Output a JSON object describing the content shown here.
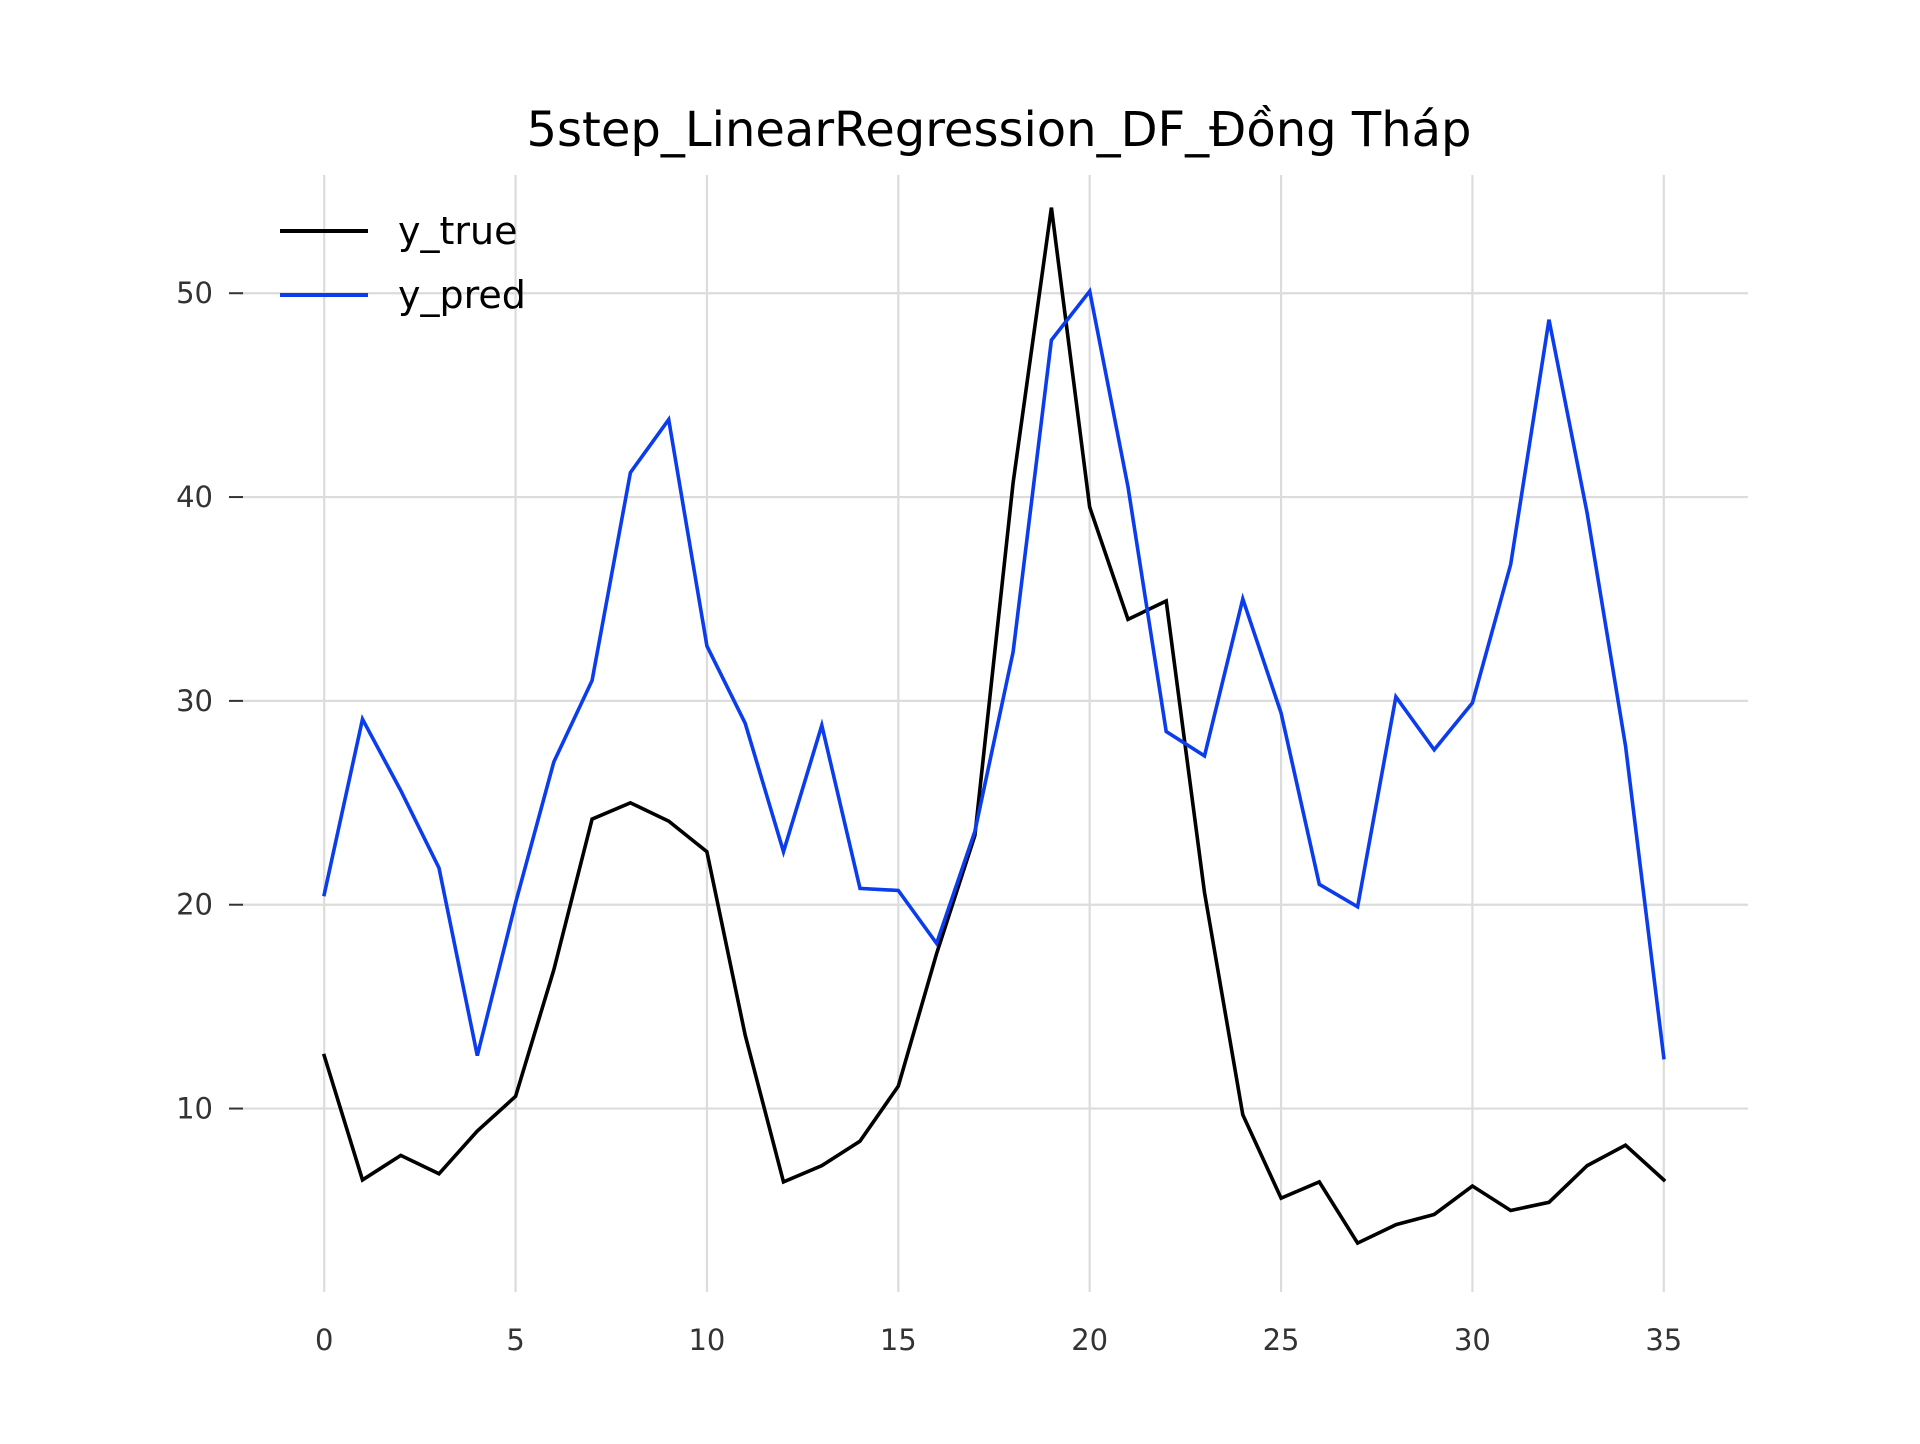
{
  "chart_data": {
    "type": "line",
    "title": "5step_LinearRegression_DF_Đồng Tháp",
    "xlabel": "",
    "ylabel": "",
    "xlim": [
      -2.2,
      37.2
    ],
    "ylim": [
      1.0,
      55.8
    ],
    "xticks": [
      0,
      5,
      10,
      15,
      20,
      25,
      30,
      35
    ],
    "yticks": [
      10,
      20,
      30,
      40,
      50
    ],
    "grid": true,
    "legend_position": "upper-left",
    "x": [
      0,
      1,
      2,
      3,
      4,
      5,
      6,
      7,
      8,
      9,
      10,
      11,
      12,
      13,
      14,
      15,
      16,
      17,
      18,
      19,
      20,
      21,
      22,
      23,
      24,
      25,
      26,
      27,
      28,
      29,
      30,
      31,
      32,
      33,
      34,
      35
    ],
    "series": [
      {
        "name": "y_true",
        "color": "#000000",
        "values": [
          12.6,
          6.5,
          7.7,
          6.8,
          8.9,
          10.6,
          16.8,
          24.2,
          25.0,
          24.1,
          22.6,
          13.6,
          6.4,
          7.2,
          8.4,
          11.1,
          17.6,
          23.4,
          40.7,
          54.2,
          39.5,
          34.0,
          34.9,
          20.6,
          9.7,
          5.6,
          6.4,
          3.4,
          4.3,
          4.8,
          6.2,
          5.0,
          5.4,
          7.2,
          8.2,
          6.5
        ]
      },
      {
        "name": "y_pred",
        "color": "#0b3ded",
        "values": [
          20.5,
          29.1,
          25.6,
          21.8,
          12.6,
          20.1,
          27.0,
          31.0,
          41.2,
          43.8,
          32.7,
          28.9,
          22.6,
          28.8,
          20.8,
          20.7,
          18.1,
          23.6,
          32.4,
          47.7,
          50.1,
          40.5,
          28.5,
          27.3,
          35.0,
          29.4,
          21.0,
          19.9,
          30.2,
          27.6,
          29.9,
          36.7,
          48.7,
          39.2,
          27.8,
          12.5
        ]
      }
    ]
  }
}
